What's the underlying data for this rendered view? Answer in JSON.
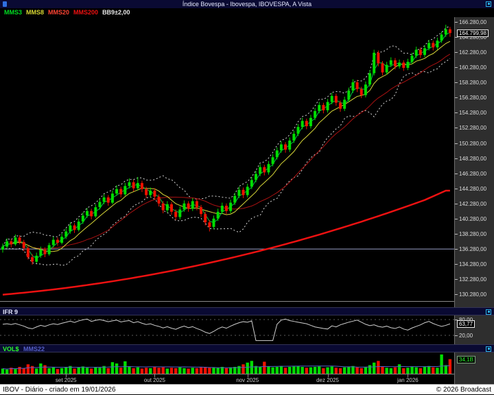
{
  "title_bar": {
    "title": "Índice Bovespa - Ibovespa, IBOVESPA, A Vista"
  },
  "legend": [
    {
      "label": "MMS3",
      "color": "#00dd22"
    },
    {
      "label": "MMS8",
      "color": "#d8d832"
    },
    {
      "label": "MMS20",
      "color": "#ff4433"
    },
    {
      "label": "MMS200",
      "color": "#ee1111"
    },
    {
      "label": "BB9±2,00",
      "color": "#e6e6e6"
    }
  ],
  "price_axis": {
    "top_value": 166.28,
    "step": 2.0,
    "labels": [
      "166.280,00",
      "164.280,00",
      "162.280,00",
      "160.280,00",
      "158.280,00",
      "156.280,00",
      "154.280,00",
      "152.280,00",
      "150.280,00",
      "148.280,00",
      "146.280,00",
      "144.280,00",
      "142.280,00",
      "140.280,00",
      "138.280,00",
      "136.280,00",
      "134.280,00",
      "132.280,00",
      "130.280,00"
    ],
    "last_price": {
      "value": 164.8,
      "label": "164.799,98"
    }
  },
  "ifr_panel": {
    "title": "IFR 9",
    "grid_labels": [
      {
        "value": 80,
        "label": "80,00"
      },
      {
        "value": 20,
        "label": "20,00"
      }
    ],
    "last": {
      "value": 63.77,
      "label": "63,77"
    }
  },
  "vol_panel": {
    "title": "VOL$",
    "subtitle": "MMS22",
    "last": {
      "value": 34.1,
      "label": "34,1B"
    }
  },
  "x_axis_months": [
    {
      "label": "set 2025",
      "day": 15
    },
    {
      "label": "out 2025",
      "day": 36
    },
    {
      "label": "nov 2025",
      "day": 58
    },
    {
      "label": "dez 2025",
      "day": 77
    },
    {
      "label": "jan 2026",
      "day": 96
    }
  ],
  "status_bar": {
    "left": "IBOV - Diário - criado em 19/01/2026",
    "right": "© 2026 Broadcast"
  },
  "colors": {
    "candle_up": "#00dd00",
    "candle_down": "#ee1100",
    "mms3": "#00c040",
    "mms8": "#d8d838",
    "mms20": "#aa1111",
    "mms200": "#ee1111",
    "bollinger": "#d8d8d8",
    "hline": "#9aa0c8",
    "ifr_line": "#d0d0d0",
    "vol_ma_line": "#5560c8",
    "grid_dash": "#bbbbbb"
  },
  "chart_data": {
    "type": "candlestick",
    "title": "Índice Bovespa - IBOVESPA, A Vista (Diário)",
    "unit": "mil pontos",
    "ylim": [
      129.5,
      166.9
    ],
    "hline_value": 136.28,
    "overlays": [
      "MMS3",
      "MMS8",
      "MMS20",
      "MMS200",
      "BB9±2,00"
    ],
    "candles": [
      [
        136.2,
        137.0,
        135.8,
        136.6
      ],
      [
        136.6,
        137.7,
        136.3,
        137.3
      ],
      [
        137.3,
        137.6,
        136.5,
        136.9
      ],
      [
        136.9,
        138.2,
        136.7,
        137.8
      ],
      [
        137.8,
        138.1,
        136.9,
        137.2
      ],
      [
        137.2,
        137.5,
        136.0,
        136.4
      ],
      [
        136.4,
        136.7,
        134.9,
        135.2
      ],
      [
        135.2,
        135.6,
        134.2,
        134.6
      ],
      [
        134.6,
        135.8,
        134.4,
        135.4
      ],
      [
        135.4,
        136.6,
        135.1,
        136.2
      ],
      [
        136.2,
        136.5,
        135.2,
        135.6
      ],
      [
        135.6,
        137.1,
        135.4,
        136.8
      ],
      [
        136.8,
        137.9,
        136.5,
        137.5
      ],
      [
        137.5,
        137.8,
        136.7,
        137.1
      ],
      [
        137.1,
        138.3,
        136.9,
        137.9
      ],
      [
        137.9,
        139.0,
        137.6,
        138.6
      ],
      [
        138.6,
        139.8,
        138.3,
        139.4
      ],
      [
        139.4,
        139.7,
        138.4,
        138.8
      ],
      [
        138.8,
        140.3,
        138.6,
        139.9
      ],
      [
        139.9,
        141.1,
        139.6,
        140.7
      ],
      [
        140.7,
        141.7,
        140.4,
        141.3
      ],
      [
        141.3,
        141.6,
        140.2,
        140.6
      ],
      [
        140.6,
        142.2,
        140.4,
        141.8
      ],
      [
        141.8,
        142.9,
        141.5,
        142.5
      ],
      [
        142.5,
        143.5,
        142.2,
        143.1
      ],
      [
        143.1,
        143.4,
        142.0,
        142.4
      ],
      [
        142.4,
        144.0,
        142.2,
        143.6
      ],
      [
        143.6,
        144.7,
        143.3,
        144.2
      ],
      [
        144.2,
        144.5,
        143.1,
        143.5
      ],
      [
        143.5,
        145.0,
        143.3,
        144.6
      ],
      [
        144.6,
        145.6,
        144.3,
        145.1
      ],
      [
        145.1,
        145.4,
        143.9,
        144.3
      ],
      [
        144.3,
        145.8,
        144.0,
        145.0
      ],
      [
        145.0,
        145.3,
        143.8,
        144.2
      ],
      [
        144.2,
        144.5,
        143.0,
        143.4
      ],
      [
        143.4,
        144.4,
        143.1,
        144.0
      ],
      [
        144.0,
        144.3,
        142.8,
        143.2
      ],
      [
        143.2,
        143.5,
        141.9,
        142.3
      ],
      [
        142.3,
        142.6,
        141.0,
        141.4
      ],
      [
        141.4,
        142.6,
        141.1,
        142.2
      ],
      [
        142.2,
        142.5,
        140.8,
        141.2
      ],
      [
        141.2,
        141.5,
        140.1,
        140.5
      ],
      [
        140.5,
        141.9,
        140.2,
        141.5
      ],
      [
        141.5,
        142.7,
        141.2,
        142.3
      ],
      [
        142.3,
        142.6,
        141.2,
        141.6
      ],
      [
        141.6,
        143.0,
        141.3,
        142.6
      ],
      [
        142.6,
        142.9,
        141.4,
        141.8
      ],
      [
        141.8,
        142.1,
        140.5,
        140.9
      ],
      [
        140.9,
        141.2,
        139.4,
        139.8
      ],
      [
        139.8,
        140.1,
        138.6,
        139.2
      ],
      [
        139.2,
        140.7,
        138.9,
        140.3
      ],
      [
        140.3,
        141.6,
        140.0,
        141.2
      ],
      [
        141.2,
        142.4,
        140.9,
        142.0
      ],
      [
        142.0,
        142.3,
        140.9,
        141.3
      ],
      [
        141.3,
        142.8,
        141.0,
        142.4
      ],
      [
        142.4,
        143.7,
        142.1,
        143.3
      ],
      [
        143.3,
        144.5,
        143.0,
        144.1
      ],
      [
        144.1,
        144.4,
        143.0,
        143.4
      ],
      [
        143.4,
        144.9,
        143.1,
        144.5
      ],
      [
        144.5,
        145.8,
        144.2,
        145.4
      ],
      [
        145.4,
        146.6,
        145.1,
        146.2
      ],
      [
        146.2,
        147.5,
        145.9,
        147.1
      ],
      [
        147.1,
        147.4,
        146.0,
        146.4
      ],
      [
        146.4,
        147.9,
        146.1,
        147.5
      ],
      [
        147.5,
        148.8,
        147.2,
        148.4
      ],
      [
        148.4,
        149.7,
        148.1,
        149.3
      ],
      [
        149.3,
        150.5,
        149.0,
        150.1
      ],
      [
        150.1,
        150.4,
        149.0,
        149.4
      ],
      [
        149.4,
        151.0,
        149.1,
        150.6
      ],
      [
        150.6,
        151.9,
        150.3,
        151.5
      ],
      [
        151.5,
        152.8,
        151.2,
        152.4
      ],
      [
        152.4,
        153.6,
        152.1,
        153.2
      ],
      [
        153.2,
        153.5,
        152.1,
        152.5
      ],
      [
        152.5,
        154.0,
        152.2,
        153.6
      ],
      [
        153.6,
        154.9,
        153.3,
        154.5
      ],
      [
        154.5,
        155.7,
        154.2,
        155.3
      ],
      [
        155.3,
        155.6,
        154.2,
        154.6
      ],
      [
        154.6,
        156.1,
        154.3,
        155.7
      ],
      [
        155.7,
        156.9,
        155.4,
        156.5
      ],
      [
        156.5,
        156.8,
        155.2,
        155.6
      ],
      [
        155.6,
        155.9,
        154.4,
        154.8
      ],
      [
        154.8,
        156.4,
        154.5,
        156.0
      ],
      [
        156.0,
        157.6,
        155.7,
        157.2
      ],
      [
        157.2,
        158.7,
        156.9,
        158.3
      ],
      [
        158.3,
        158.6,
        157.0,
        157.4
      ],
      [
        157.4,
        157.7,
        156.2,
        156.6
      ],
      [
        156.6,
        158.4,
        156.3,
        158.0
      ],
      [
        158.0,
        159.9,
        157.7,
        159.5
      ],
      [
        159.5,
        162.6,
        159.2,
        162.2
      ],
      [
        162.2,
        162.5,
        160.4,
        160.8
      ],
      [
        160.8,
        161.1,
        159.2,
        159.6
      ],
      [
        159.6,
        161.0,
        159.3,
        160.6
      ],
      [
        160.6,
        161.6,
        160.3,
        161.2
      ],
      [
        161.2,
        161.5,
        160.0,
        160.4
      ],
      [
        160.4,
        161.3,
        160.1,
        160.9
      ],
      [
        160.9,
        161.2,
        159.8,
        160.2
      ],
      [
        160.2,
        161.4,
        159.9,
        161.0
      ],
      [
        161.0,
        162.2,
        160.7,
        161.8
      ],
      [
        161.8,
        163.0,
        161.5,
        162.6
      ],
      [
        162.6,
        162.9,
        161.5,
        161.9
      ],
      [
        161.9,
        163.2,
        161.6,
        162.8
      ],
      [
        162.8,
        163.9,
        162.5,
        163.5
      ],
      [
        163.5,
        163.8,
        162.5,
        162.9
      ],
      [
        162.9,
        164.2,
        162.6,
        163.8
      ],
      [
        163.8,
        165.0,
        163.5,
        164.6
      ],
      [
        164.6,
        165.9,
        164.3,
        165.3
      ],
      [
        165.3,
        165.6,
        164.3,
        164.8
      ]
    ],
    "mms200_sampled": {
      "step": 5,
      "values": [
        130.25,
        130.51,
        130.81,
        131.14,
        131.52,
        131.93,
        132.38,
        132.87,
        133.4,
        133.97,
        134.58,
        135.22,
        135.9,
        136.62,
        137.38,
        138.18,
        139.02,
        139.89,
        140.81,
        141.76,
        142.75,
        143.99
      ]
    },
    "ifr9": [
      62,
      64,
      61,
      65,
      60,
      55,
      48,
      45,
      52,
      58,
      54,
      60,
      64,
      61,
      66,
      70,
      74,
      69,
      75,
      79,
      82,
      73,
      77,
      80,
      76,
      72,
      75,
      78,
      71,
      74,
      76,
      68,
      72,
      66,
      61,
      64,
      58,
      54,
      48,
      53,
      47,
      43,
      50,
      55,
      49,
      53,
      46,
      40,
      32,
      27,
      35,
      45,
      52,
      47,
      55,
      62,
      68,
      72,
      70,
      75,
      0,
      0,
      0,
      0,
      0,
      62,
      78,
      82,
      76,
      73,
      70,
      67,
      64,
      58,
      52,
      49,
      46,
      44,
      56,
      52,
      60,
      65,
      70,
      74,
      78,
      70,
      62,
      57,
      60,
      54,
      51,
      55,
      49,
      46,
      52,
      44,
      40,
      48,
      54,
      60,
      68,
      73,
      65,
      59,
      54,
      58,
      63.77
    ],
    "volume_billions": [
      12,
      10,
      14,
      11,
      16,
      13,
      22,
      18,
      12,
      24,
      20,
      13,
      15,
      11,
      13,
      16,
      18,
      12,
      15,
      17,
      14,
      12,
      16,
      14,
      18,
      13,
      27,
      24,
      14,
      29,
      16,
      13,
      15,
      12,
      14,
      13,
      16,
      14,
      15,
      12,
      14,
      13,
      15,
      13,
      12,
      14,
      13,
      15,
      16,
      14,
      15,
      14,
      16,
      13,
      15,
      16,
      18,
      22,
      26,
      30,
      18,
      16,
      28,
      17,
      15,
      16,
      18,
      14,
      16,
      17,
      18,
      16,
      14,
      15,
      16,
      17,
      13,
      15,
      17,
      14,
      13,
      15,
      16,
      18,
      15,
      13,
      16,
      20,
      26,
      30,
      17,
      14,
      13,
      15,
      22,
      13,
      14,
      16,
      15,
      13,
      16,
      18,
      15,
      14,
      45,
      20,
      34.1
    ],
    "volume_scale_max": 48
  }
}
